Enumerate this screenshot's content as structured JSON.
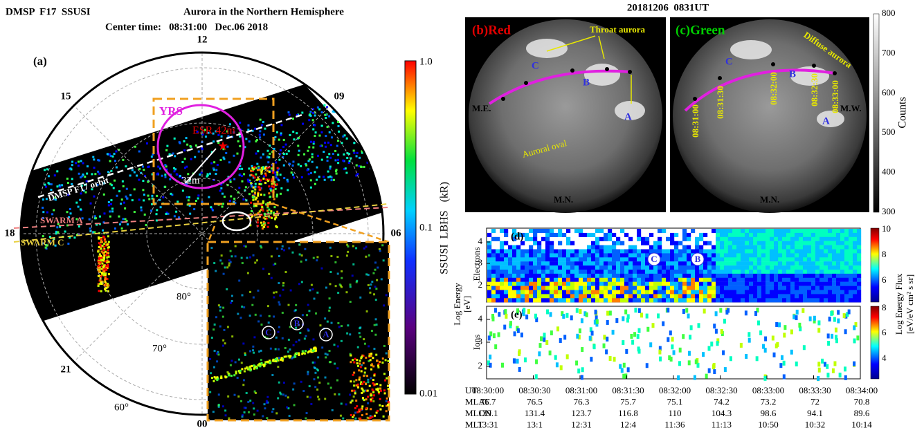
{
  "panel_a": {
    "title": "DMSP  F17  SSUSI",
    "subtitle": "Aurora in the Northern Hemisphere",
    "center_time": "Center time:   08:31:00   Dec.06 2018",
    "label": "(a)",
    "mlt_labels": [
      "12",
      "15",
      "09",
      "18",
      "06",
      "21",
      "00"
    ],
    "lat_labels": [
      "80°",
      "70°",
      "60°"
    ],
    "annotations": {
      "yrs": "YRS",
      "esr": "ESR 42m",
      "distance": "32m",
      "orbit": "DMSP F17 orbit",
      "swarm_a": "SWARM A",
      "swarm_c": "SWARM C"
    },
    "inset_labels": [
      "C",
      "B",
      "A"
    ],
    "colorbar": {
      "ticks": [
        "1.0",
        "0.1",
        "0.01"
      ],
      "label": "SSUSI  LBHS   (kR)"
    }
  },
  "panel_bc": {
    "title": "20181206  0831UT",
    "red": {
      "label": "(b)Red",
      "throat": "Throat aurora",
      "points": [
        "C",
        "B",
        "A"
      ],
      "east": "M.E.",
      "north": "M.N.",
      "oval": "Auroral oval"
    },
    "green": {
      "label": "(c)Green",
      "diffuse": "Diffuse aurora",
      "points": [
        "C",
        "B",
        "A"
      ],
      "west": "M.W.",
      "north": "M.N.",
      "times": [
        "08:31:00",
        "08:31:30",
        "08:32:00",
        "08:32:30",
        "08:33:00"
      ]
    },
    "colorbar": {
      "ticks": [
        "800",
        "700",
        "600",
        "500",
        "400",
        "300"
      ],
      "label": "Counts"
    }
  },
  "panel_de": {
    "d_label": "(d)",
    "e_label": "(e)",
    "d_points": [
      "C",
      "B"
    ],
    "energy_ticks": [
      "4",
      "3",
      "2"
    ],
    "electrons": "Electrons",
    "ions": "Ions",
    "y_label": [
      "Log Energy",
      "[eV]"
    ],
    "d_colorbar_ticks": [
      "10",
      "8",
      "6"
    ],
    "e_colorbar_ticks": [
      "8",
      "6",
      "4"
    ],
    "colorbar_label": [
      "Log Energy Flux",
      "[eV/eV cm² s sr]"
    ],
    "table": {
      "row_labels": [
        "UT",
        "MLAT",
        "MLON",
        "MLT"
      ],
      "rows": [
        [
          "08:30:00",
          "08:30:30",
          "08:31:00",
          "08:31:30",
          "08:32:00",
          "08:32:30",
          "08:33:00",
          "08:33:30",
          "08:34:00"
        ],
        [
          "76.7",
          "76.5",
          "76.3",
          "75.7",
          "75.1",
          "74.2",
          "73.2",
          "72",
          "70.8"
        ],
        [
          "139.1",
          "131.4",
          "123.7",
          "116.8",
          "110",
          "104.3",
          "98.6",
          "94.1",
          "89.6"
        ],
        [
          "13:31",
          "13:1",
          "12:31",
          "12:4",
          "11:36",
          "11:13",
          "10:50",
          "10:32",
          "10:14"
        ]
      ]
    }
  }
}
